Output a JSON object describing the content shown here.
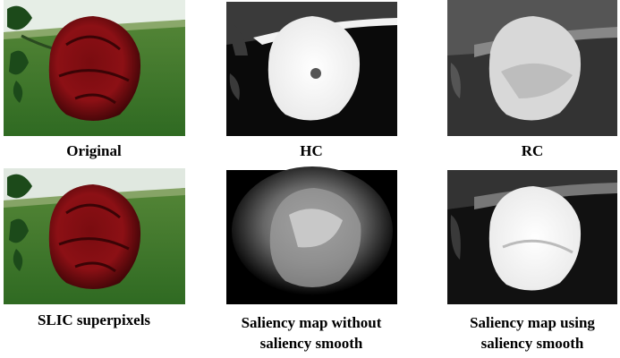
{
  "panels": [
    {
      "caption": [
        "Original"
      ]
    },
    {
      "caption": [
        "HC"
      ]
    },
    {
      "caption": [
        "RC"
      ]
    },
    {
      "caption": [
        "SLIC superpixels"
      ]
    },
    {
      "caption": [
        "Saliency map without",
        "saliency smooth"
      ]
    },
    {
      "caption": [
        "Saliency map using",
        "saliency smooth"
      ]
    }
  ]
}
